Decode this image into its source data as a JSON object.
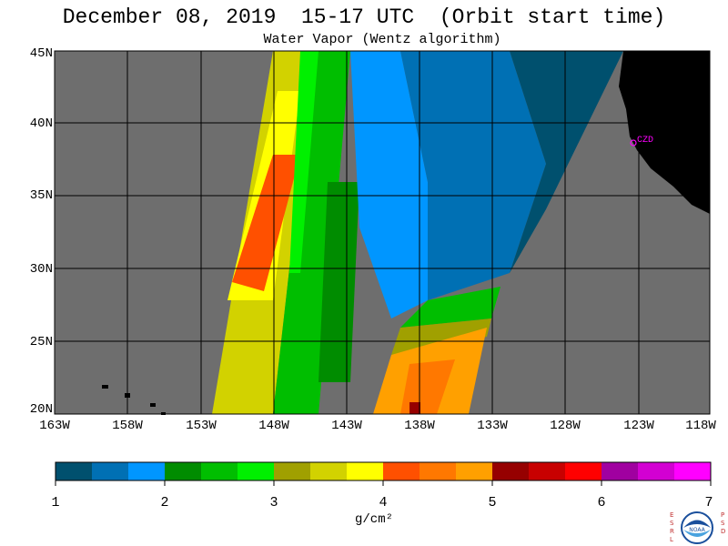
{
  "header": {
    "title": "December 08, 2019  15-17 UTC  (Orbit start time)",
    "subtitle": "Water Vapor (Wentz algorithm)"
  },
  "map": {
    "lat_labels": [
      "45N",
      "40N",
      "35N",
      "30N",
      "25N",
      "20N"
    ],
    "lon_labels": [
      "163W",
      "158W",
      "153W",
      "148W",
      "143W",
      "138W",
      "133W",
      "128W",
      "123W",
      "118W"
    ],
    "station_label": "CZD",
    "colors": {
      "no_data": "#6e6e6e",
      "land": "#000000",
      "station": "#ff00ff",
      "grid": "#000000"
    }
  },
  "colorbar": {
    "tick_labels": [
      "1",
      "2",
      "3",
      "4",
      "5",
      "6",
      "7"
    ],
    "units": "g/cm²",
    "bins": [
      "#00506e",
      "#0070b4",
      "#0096ff",
      "#008c00",
      "#00be00",
      "#00f000",
      "#a0a000",
      "#d2d200",
      "#ffff00",
      "#ff5000",
      "#ff7800",
      "#ffa000",
      "#960000",
      "#c80000",
      "#ff0000",
      "#a000a0",
      "#d200d2",
      "#ff00ff"
    ]
  },
  "logo": {
    "left_text": "ESRL",
    "right_text": "PSD",
    "name": "NOAA"
  }
}
